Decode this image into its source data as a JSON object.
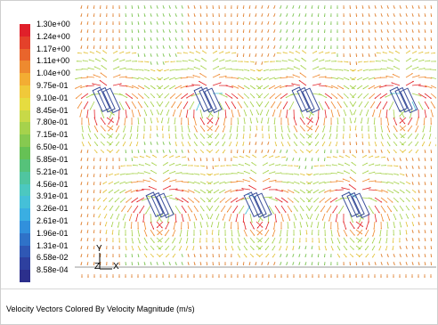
{
  "legend": {
    "levels": [
      {
        "label": "1.30e+00",
        "color": "#e0202a"
      },
      {
        "label": "1.24e+00",
        "color": "#e4412a"
      },
      {
        "label": "1.17e+00",
        "color": "#e9652c"
      },
      {
        "label": "1.11e+00",
        "color": "#ee8a2f"
      },
      {
        "label": "1.04e+00",
        "color": "#f3ad33"
      },
      {
        "label": "9.75e-01",
        "color": "#f0c93a"
      },
      {
        "label": "9.10e-01",
        "color": "#e6dc40"
      },
      {
        "label": "8.45e-01",
        "color": "#c8d948"
      },
      {
        "label": "7.80e-01",
        "color": "#a6d24c"
      },
      {
        "label": "7.15e-01",
        "color": "#86c950"
      },
      {
        "label": "6.50e-01",
        "color": "#66c155"
      },
      {
        "label": "5.85e-01",
        "color": "#56c27a"
      },
      {
        "label": "5.21e-01",
        "color": "#50c5a0"
      },
      {
        "label": "4.56e-01",
        "color": "#4cc8c0"
      },
      {
        "label": "3.91e-01",
        "color": "#45c0d8"
      },
      {
        "label": "3.26e-01",
        "color": "#3aaee2"
      },
      {
        "label": "2.61e-01",
        "color": "#3190dc"
      },
      {
        "label": "1.96e-01",
        "color": "#2f72c8"
      },
      {
        "label": "1.31e-01",
        "color": "#2f57b4"
      },
      {
        "label": "6.58e-02",
        "color": "#2e409f"
      },
      {
        "label": "8.58e-04",
        "color": "#2c2f8c"
      }
    ]
  },
  "axes": {
    "y": "Y",
    "z": "Z",
    "x": "X"
  },
  "caption": "Velocity Vectors Colored By Velocity Magnitude (m/s)",
  "vortex_colors": {
    "outer": "#e3262b",
    "mid": "#f08a30",
    "inner": "#a6d24c",
    "core": "#45c0d8",
    "bundle": "#3a4e9a"
  }
}
